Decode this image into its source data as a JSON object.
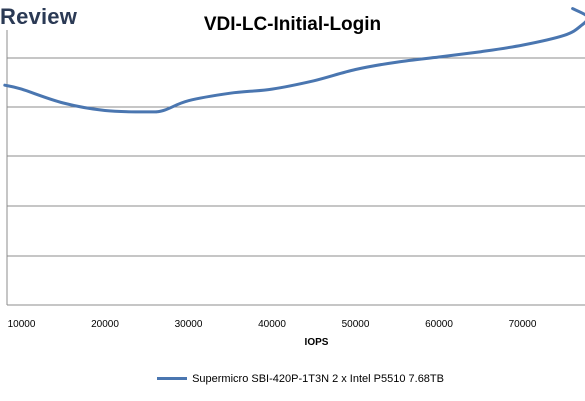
{
  "brand": {
    "text": "Review"
  },
  "chart_data": {
    "type": "line",
    "title": "VDI-LC-Initial-Login",
    "xlabel": "IOPS",
    "ylabel": "",
    "x_ticks": [
      10000,
      20000,
      30000,
      40000,
      50000,
      60000,
      70000
    ],
    "grid": true,
    "legend_position": "bottom",
    "line_color": "#4a76b0",
    "series": [
      {
        "name": "Supermicro SBI-420P-1T3N 2 x Intel P5510 7.68TB",
        "points": [
          {
            "x": 8000,
            "y": 0.74
          },
          {
            "x": 10000,
            "y": 0.727
          },
          {
            "x": 15000,
            "y": 0.68
          },
          {
            "x": 20000,
            "y": 0.655
          },
          {
            "x": 25000,
            "y": 0.65
          },
          {
            "x": 27000,
            "y": 0.655
          },
          {
            "x": 30000,
            "y": 0.688
          },
          {
            "x": 35000,
            "y": 0.713
          },
          {
            "x": 40000,
            "y": 0.727
          },
          {
            "x": 45000,
            "y": 0.755
          },
          {
            "x": 50000,
            "y": 0.793
          },
          {
            "x": 55000,
            "y": 0.818
          },
          {
            "x": 60000,
            "y": 0.835
          },
          {
            "x": 65000,
            "y": 0.853
          },
          {
            "x": 70000,
            "y": 0.875
          },
          {
            "x": 75000,
            "y": 0.908
          },
          {
            "x": 77000,
            "y": 0.94
          },
          {
            "x": 77800,
            "y": 0.97
          },
          {
            "x": 76000,
            "y": 0.998
          }
        ]
      }
    ]
  }
}
